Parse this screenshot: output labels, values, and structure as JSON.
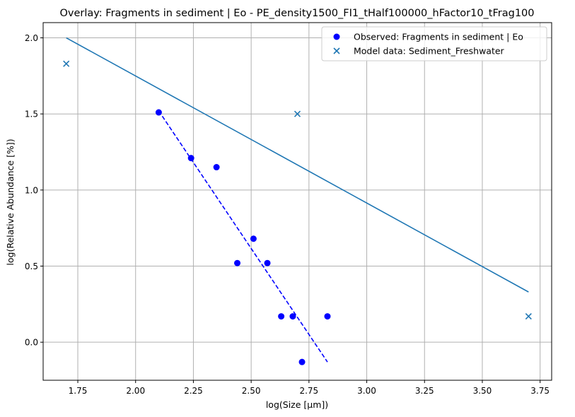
{
  "chart_data": {
    "type": "scatter",
    "title": "Overlay: Fragments in sediment | Eo - PE_density1500_FI1_tHalf100000_hFactor10_tFrag100",
    "xlabel": "log(Size [µm])",
    "ylabel": "log(Relative Abundance [%])",
    "xlim": [
      1.6,
      3.8
    ],
    "ylim": [
      -0.25,
      2.1
    ],
    "xticks": [
      1.75,
      2.0,
      2.25,
      2.5,
      2.75,
      3.0,
      3.25,
      3.5,
      3.75
    ],
    "xtick_labels": [
      "1.75",
      "2.00",
      "2.25",
      "2.50",
      "2.75",
      "3.00",
      "3.25",
      "3.50",
      "3.75"
    ],
    "yticks": [
      0.0,
      0.5,
      1.0,
      1.5,
      2.0
    ],
    "ytick_labels": [
      "0.0",
      "0.5",
      "1.0",
      "1.5",
      "2.0"
    ],
    "grid": true,
    "legend_position": "top-right",
    "colors": {
      "observed": "#0000ff",
      "model": "#1f77b4"
    },
    "series": [
      {
        "name": "Observed: Fragments in sediment | Eo",
        "marker": "circle",
        "x": [
          2.1,
          2.24,
          2.35,
          2.44,
          2.51,
          2.57,
          2.63,
          2.68,
          2.72,
          2.83
        ],
        "y": [
          1.51,
          1.21,
          1.15,
          0.52,
          0.68,
          0.52,
          0.17,
          0.17,
          -0.13,
          0.17
        ]
      },
      {
        "name": "Model data: Sediment_Freshwater",
        "marker": "x",
        "x": [
          1.7,
          2.7,
          3.7
        ],
        "y": [
          1.83,
          1.5,
          0.17
        ]
      }
    ],
    "fit_lines": [
      {
        "series": "observed",
        "style": "dashed",
        "x": [
          2.1,
          2.83
        ],
        "y": [
          1.52,
          -0.13
        ]
      },
      {
        "series": "model",
        "style": "solid",
        "x": [
          1.7,
          3.7
        ],
        "y": [
          2.0,
          0.33
        ]
      }
    ]
  }
}
